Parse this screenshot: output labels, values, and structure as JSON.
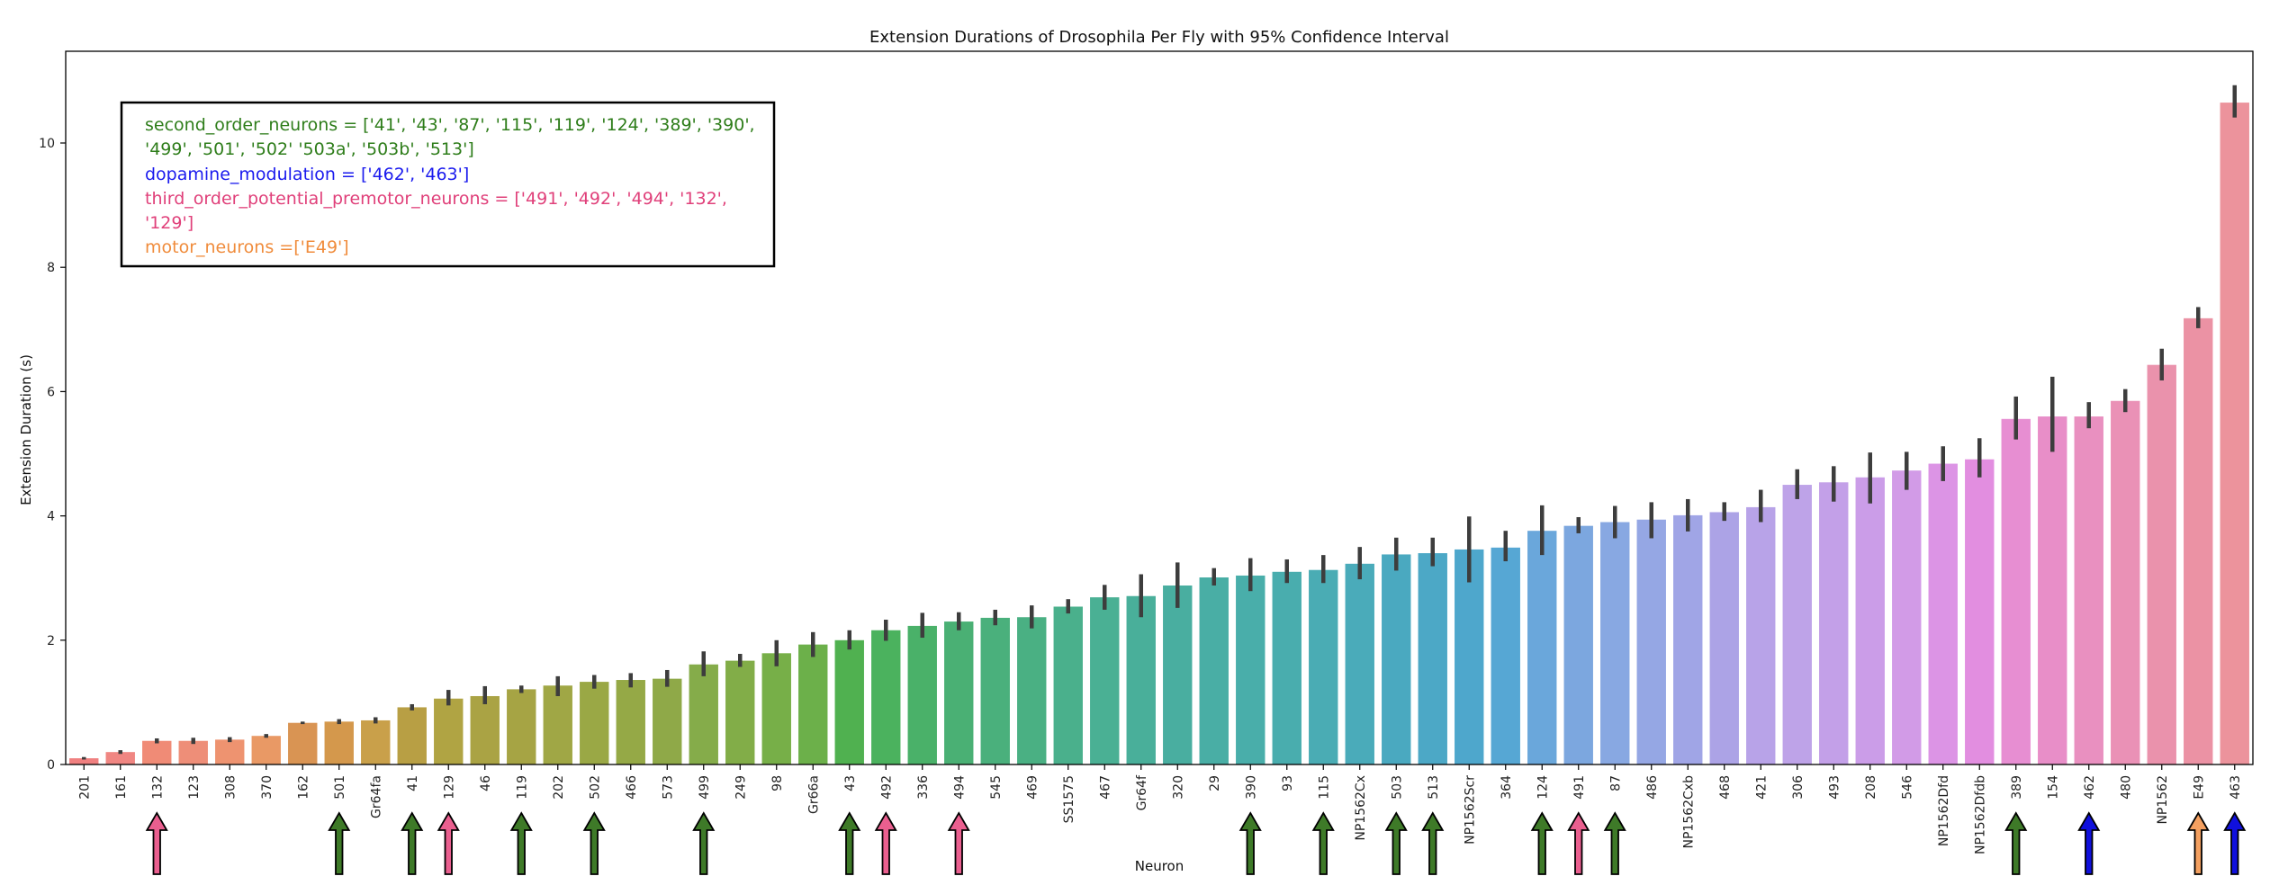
{
  "chart_data": {
    "type": "bar",
    "title": "Extension Durations of Drosophila Per Fly with 95% Confidence Interval",
    "xlabel": "Neuron",
    "ylabel": "Extension Duration (s)",
    "ylim": [
      0,
      11.5
    ],
    "yticks": [
      0,
      2,
      4,
      6,
      8,
      10
    ],
    "categories": [
      "201",
      "161",
      "132",
      "123",
      "308",
      "370",
      "162",
      "501",
      "Gr64fa",
      "41",
      "129",
      "46",
      "119",
      "202",
      "502",
      "466",
      "573",
      "499",
      "249",
      "98",
      "Gr66a",
      "43",
      "492",
      "336",
      "494",
      "545",
      "469",
      "SS1575",
      "467",
      "Gr64f",
      "320",
      "29",
      "390",
      "93",
      "115",
      "NP1562Cx",
      "503",
      "513",
      "NP1562Scr",
      "364",
      "124",
      "491",
      "87",
      "486",
      "NP1562Cxb",
      "468",
      "421",
      "306",
      "493",
      "208",
      "546",
      "NP1562Dfd",
      "NP1562Dfdb",
      "389",
      "154",
      "462",
      "480",
      "NP1562",
      "E49",
      "463"
    ],
    "values": [
      0.1,
      0.2,
      0.38,
      0.38,
      0.4,
      0.46,
      0.67,
      0.69,
      0.71,
      0.92,
      1.06,
      1.1,
      1.21,
      1.27,
      1.33,
      1.36,
      1.38,
      1.61,
      1.67,
      1.79,
      1.93,
      2.0,
      2.16,
      2.23,
      2.3,
      2.36,
      2.37,
      2.54,
      2.69,
      2.71,
      2.88,
      3.01,
      3.04,
      3.1,
      3.13,
      3.23,
      3.38,
      3.4,
      3.46,
      3.49,
      3.76,
      3.84,
      3.9,
      3.94,
      4.01,
      4.06,
      4.14,
      4.5,
      4.54,
      4.62,
      4.73,
      4.84,
      4.91,
      5.56,
      5.6,
      5.6,
      5.85,
      6.43,
      7.18,
      10.65
    ],
    "ci_low": [
      0.08,
      0.17,
      0.34,
      0.33,
      0.36,
      0.43,
      0.65,
      0.65,
      0.66,
      0.87,
      0.95,
      0.97,
      1.15,
      1.1,
      1.22,
      1.24,
      1.25,
      1.42,
      1.57,
      1.58,
      1.73,
      1.85,
      1.99,
      2.04,
      2.16,
      2.24,
      2.19,
      2.43,
      2.49,
      2.37,
      2.52,
      2.88,
      2.79,
      2.92,
      2.92,
      2.98,
      3.12,
      3.19,
      2.93,
      3.27,
      3.37,
      3.72,
      3.64,
      3.64,
      3.75,
      3.92,
      3.9,
      4.27,
      4.23,
      4.2,
      4.42,
      4.56,
      4.62,
      5.23,
      5.03,
      5.41,
      5.67,
      6.18,
      7.02,
      10.41
    ],
    "ci_high": [
      0.12,
      0.23,
      0.42,
      0.43,
      0.44,
      0.49,
      0.69,
      0.73,
      0.76,
      0.97,
      1.2,
      1.26,
      1.27,
      1.42,
      1.44,
      1.47,
      1.52,
      1.82,
      1.78,
      2.0,
      2.13,
      2.16,
      2.33,
      2.44,
      2.45,
      2.49,
      2.56,
      2.66,
      2.89,
      3.06,
      3.25,
      3.16,
      3.32,
      3.3,
      3.37,
      3.5,
      3.65,
      3.65,
      3.99,
      3.76,
      4.17,
      3.98,
      4.16,
      4.22,
      4.27,
      4.22,
      4.42,
      4.75,
      4.8,
      5.02,
      5.03,
      5.12,
      5.25,
      5.92,
      6.24,
      5.83,
      6.04,
      6.69,
      7.36,
      10.93
    ],
    "colors": [
      "#f08080",
      "#f08682",
      "#f08b76",
      "#ee8e78",
      "#ee9370",
      "#e99965",
      "#d99453",
      "#d4984c",
      "#c9a04a",
      "#b89f44",
      "#b0a443",
      "#aaa344",
      "#a6a444",
      "#a0a745",
      "#9aa845",
      "#95a946",
      "#8fa948",
      "#85ac4a",
      "#82ad48",
      "#77af48",
      "#6cb04a",
      "#50b150",
      "#4bb25e",
      "#4ab169",
      "#4ab074",
      "#4ab07c",
      "#4ab083",
      "#4ab08c",
      "#4ab094",
      "#49af9a",
      "#49aea0",
      "#49aea5",
      "#49aeaa",
      "#49adae",
      "#4aacb4",
      "#4aabba",
      "#4aa9c0",
      "#4ca8c6",
      "#4ea7cc",
      "#56a7d4",
      "#6aa7db",
      "#7ca7df",
      "#88a8e2",
      "#95a7e4",
      "#a0a5e6",
      "#aca3e6",
      "#b8a3e8",
      "#bea3e8",
      "#c3a0e8",
      "#cb9de8",
      "#d29be7",
      "#dc94e5",
      "#e28ee0",
      "#e78ed2",
      "#e88ec8",
      "#e990c0",
      "#ea91b6",
      "#ea92ac",
      "#eb92a4",
      "#ec939c"
    ],
    "grid": false,
    "legend_box": {
      "location": "top-left",
      "lines": [
        {
          "text": "second_order_neurons = ['41', '43', '87', '115', '119', '124', '389', '390',",
          "color": "#2e7d1a"
        },
        {
          "text": "'499', '501', '502' '503a', '503b', '513']",
          "color": "#2e7d1a"
        },
        {
          "text": "dopamine_modulation = ['462', '463']",
          "color": "#1a1aee"
        },
        {
          "text": "third_order_potential_premotor_neurons = ['491', '492', '494', '132',",
          "color": "#e0407a"
        },
        {
          "text": "'129']",
          "color": "#e0407a"
        },
        {
          "text": "motor_neurons =['E49']",
          "color": "#f08c3c"
        }
      ]
    },
    "arrow_markers": [
      {
        "category": "132",
        "group": "third_order_potential_premotor_neurons",
        "color": "#ea5f8f"
      },
      {
        "category": "501",
        "group": "second_order_neurons",
        "color": "#3e7a28"
      },
      {
        "category": "41",
        "group": "second_order_neurons",
        "color": "#3e7a28"
      },
      {
        "category": "129",
        "group": "third_order_potential_premotor_neurons",
        "color": "#ea5f8f"
      },
      {
        "category": "119",
        "group": "second_order_neurons",
        "color": "#3e7a28"
      },
      {
        "category": "502",
        "group": "second_order_neurons",
        "color": "#3e7a28"
      },
      {
        "category": "499",
        "group": "second_order_neurons",
        "color": "#3e7a28"
      },
      {
        "category": "43",
        "group": "second_order_neurons",
        "color": "#3e7a28"
      },
      {
        "category": "492",
        "group": "third_order_potential_premotor_neurons",
        "color": "#ea5f8f"
      },
      {
        "category": "494",
        "group": "third_order_potential_premotor_neurons",
        "color": "#ea5f8f"
      },
      {
        "category": "390",
        "group": "second_order_neurons",
        "color": "#3e7a28"
      },
      {
        "category": "115",
        "group": "second_order_neurons",
        "color": "#3e7a28"
      },
      {
        "category": "503",
        "group": "second_order_neurons",
        "color": "#3e7a28"
      },
      {
        "category": "513",
        "group": "second_order_neurons",
        "color": "#3e7a28"
      },
      {
        "category": "124",
        "group": "second_order_neurons",
        "color": "#3e7a28"
      },
      {
        "category": "491",
        "group": "third_order_potential_premotor_neurons",
        "color": "#ea5f8f"
      },
      {
        "category": "87",
        "group": "second_order_neurons",
        "color": "#3e7a28"
      },
      {
        "category": "389",
        "group": "second_order_neurons",
        "color": "#3e7a28"
      },
      {
        "category": "462",
        "group": "dopamine_modulation",
        "color": "#1010dd"
      },
      {
        "category": "E49",
        "group": "motor_neurons",
        "color": "#f4a060"
      },
      {
        "category": "463",
        "group": "dopamine_modulation",
        "color": "#1010dd"
      }
    ]
  }
}
